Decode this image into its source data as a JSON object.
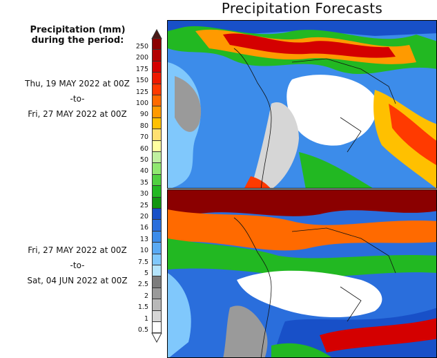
{
  "title": "Precipitation Forecasts",
  "legend": {
    "heading_line1": "Precipitation (mm)",
    "heading_line2": "during the period:"
  },
  "periods": [
    {
      "start": "Thu, 19 MAY 2022 at 00Z",
      "separator": "-to-",
      "end": "Fri, 27 MAY 2022 at 00Z"
    },
    {
      "start": "Fri, 27 MAY 2022 at 00Z",
      "separator": "-to-",
      "end": "Sat, 04 JUN 2022 at 00Z"
    }
  ],
  "colorbar": {
    "units": "mm",
    "levels": [
      "250",
      "200",
      "175",
      "150",
      "125",
      "100",
      "90",
      "80",
      "70",
      "60",
      "50",
      "40",
      "35",
      "30",
      "25",
      "20",
      "16",
      "13",
      "10",
      "7.5",
      "5",
      "2.5",
      "2",
      "1.5",
      "1",
      "0.5"
    ],
    "colors": [
      "#4a1a16",
      "#8b0000",
      "#b30000",
      "#d40000",
      "#ee1a00",
      "#ff3a00",
      "#ff6a00",
      "#ff9a00",
      "#ffc000",
      "#ffe070",
      "#ffffa0",
      "#c0f0a0",
      "#90e870",
      "#50d040",
      "#22b822",
      "#129612",
      "#1850c8",
      "#2a6edc",
      "#3c8cea",
      "#5aaaf4",
      "#80c8fc",
      "#b4e4fc",
      "#7c7c7c",
      "#9a9a9a",
      "#b8b8b8",
      "#d6d6d6",
      "#ffffff"
    ]
  },
  "maps": [
    {
      "name": "forecast-week-1"
    },
    {
      "name": "forecast-week-2"
    }
  ]
}
